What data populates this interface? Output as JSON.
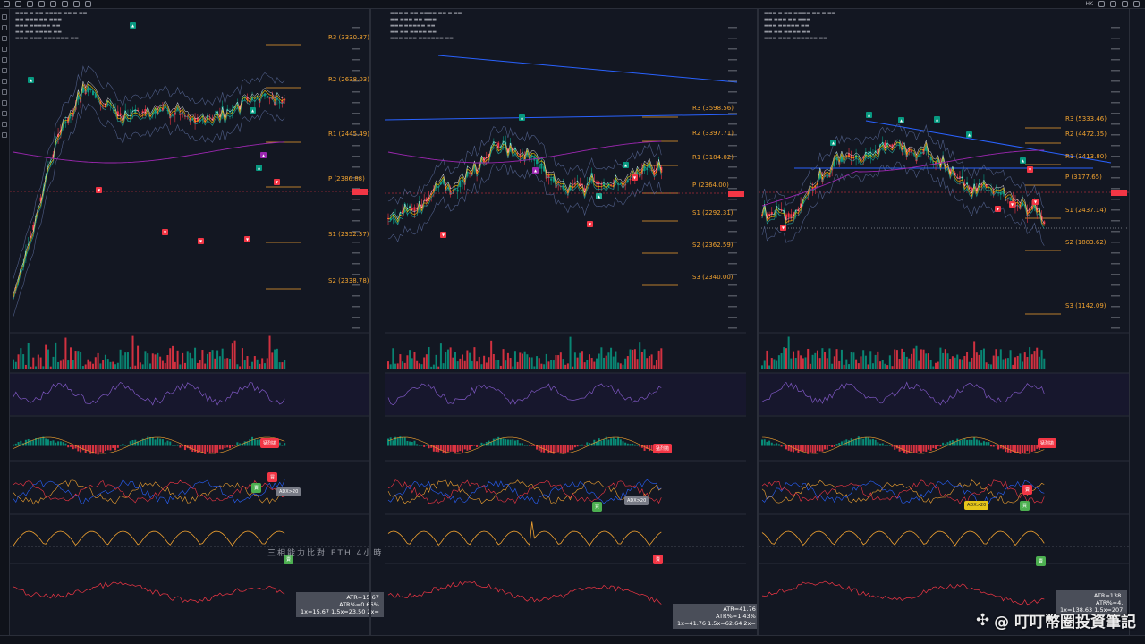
{
  "colors": {
    "background": "#131722",
    "bull": "#089981",
    "bear": "#f23645",
    "pivot": "#f0a230",
    "ma_purple": "#9c27b0",
    "trend_blue": "#2962ff"
  },
  "topbar": {
    "user_label": "HK",
    "menu_icons": [
      "menu-icon",
      "search-icon",
      "compare-icon",
      "indicators-icon",
      "alert-icon",
      "replay-icon",
      "undo-icon",
      "redo-icon"
    ],
    "right_icons": [
      "layout-icon",
      "fullscreen-icon",
      "camera-icon",
      "publish-icon"
    ]
  },
  "panels": [
    {
      "id": "left",
      "pivots": [
        {
          "label": "R3 (3330.87)",
          "kind": "r"
        },
        {
          "label": "R2 (2638.03)",
          "kind": "r"
        },
        {
          "label": "R1 (2445.49)",
          "kind": "r"
        },
        {
          "label": "P (2386.88)",
          "kind": "p"
        },
        {
          "label": "S1 (2352.37)",
          "kind": "s"
        },
        {
          "label": "S2 (2338.78)",
          "kind": "s"
        }
      ],
      "badges": [
        {
          "label": "猛烈拋",
          "kind": "red"
        },
        {
          "label": "買",
          "kind": "red"
        },
        {
          "label": "賣",
          "kind": "green"
        },
        {
          "label": "ADX>20",
          "kind": "gray"
        },
        {
          "label": "賣",
          "kind": "green"
        }
      ],
      "atr": {
        "line1": "ATR=15.67",
        "line2": "ATR%=0.66%",
        "line3": "1x=15.67   1.5x=23.50   2x="
      },
      "center_text": "三相能力比對 ETH 4小時"
    },
    {
      "id": "middle",
      "pivots": [
        {
          "label": "R3 (3598.56)",
          "kind": "r"
        },
        {
          "label": "R2 (3397.71)",
          "kind": "r"
        },
        {
          "label": "R1 (3184.02)",
          "kind": "r"
        },
        {
          "label": "P (2364.00)",
          "kind": "p"
        },
        {
          "label": "S1 (2292.31)",
          "kind": "s"
        },
        {
          "label": "S2 (2362.59)",
          "kind": "s"
        },
        {
          "label": "S3 (2340.00)",
          "kind": "s"
        }
      ],
      "badges": [
        {
          "label": "猛烈拋",
          "kind": "red"
        },
        {
          "label": "買",
          "kind": "green"
        },
        {
          "label": "ADX>20",
          "kind": "gray"
        },
        {
          "label": "賣",
          "kind": "red"
        }
      ],
      "atr": {
        "line1": "ATR=41.76",
        "line2": "ATR%=1.43%",
        "line3": "1x=41.76   1.5x=62.64   2x="
      }
    },
    {
      "id": "right",
      "pivots": [
        {
          "label": "R3 (5333.46)",
          "kind": "r"
        },
        {
          "label": "R2 (4472.35)",
          "kind": "r"
        },
        {
          "label": "R1 (3413.80)",
          "kind": "r"
        },
        {
          "label": "P (3177.65)",
          "kind": "p"
        },
        {
          "label": "S1 (2437.14)",
          "kind": "s"
        },
        {
          "label": "S2 (1883.62)",
          "kind": "s"
        },
        {
          "label": "S3 (1142.09)",
          "kind": "s"
        }
      ],
      "badges": [
        {
          "label": "猛烈拋",
          "kind": "red"
        },
        {
          "label": "ADX>20",
          "kind": "yel"
        },
        {
          "label": "賣",
          "kind": "red"
        },
        {
          "label": "買",
          "kind": "green"
        },
        {
          "label": "賣",
          "kind": "green"
        }
      ],
      "atr": {
        "line1": "ATR=138.",
        "line2": "ATR%=4.",
        "line3": "1x=138.63   1.5x=207"
      }
    }
  ],
  "watermark": "@ 叮叮幣圈投資筆記"
}
